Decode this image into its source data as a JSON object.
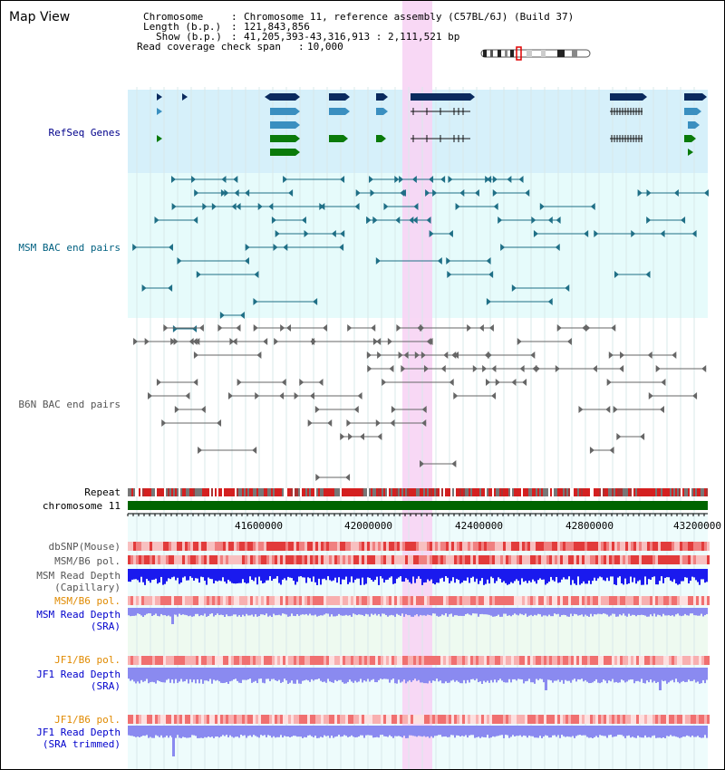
{
  "view": {
    "title": "Map View"
  },
  "info": {
    "chromosome_key": "Chromosome",
    "chromosome_val": "Chromosome 11, reference assembly (C57BL/6J) (Build 37)",
    "length_key": "Length (b.p.)",
    "length_val": "121,843,856",
    "show_key": "Show (b.p.)",
    "show_val": "41,205,393-43,316,913 : 2,111,521 bp",
    "coverage_key": "Read coverage check span",
    "coverage_val": "10,000"
  },
  "tracks": {
    "refseq": "RefSeq Genes",
    "msm_bac": "MSM BAC end pairs",
    "b6n_bac": "B6N BAC end pairs",
    "repeat": "Repeat",
    "chromosome": "chromosome 11",
    "dbsnp": "dbSNP(Mouse)",
    "msm_b6_pol_1": "MSM/B6 pol.",
    "msm_depth_cap_1": "MSM Read Depth",
    "msm_depth_cap_2": "(Capillary)",
    "msm_b6_pol_2": "MSM/B6 pol.",
    "msm_depth_sra_1": "MSM Read Depth",
    "msm_depth_sra_2": "(SRA)",
    "jf1_pol_1": "JF1/B6 pol.",
    "jf1_depth_1": "JF1 Read Depth",
    "jf1_depth_2": "(SRA)",
    "jf1_pol_2": "JF1/B6 pol.",
    "jf1_trim_1": "JF1 Read Depth",
    "jf1_trim_2": "(SRA trimmed)"
  },
  "axis": {
    "ticks": [
      "41600000",
      "42000000",
      "42400000",
      "42800000",
      "43200000"
    ]
  },
  "colors": {
    "refseq_bg": "#d6f0fa",
    "msm_bg": "#e6fbfb",
    "highlight": "#f7d4f4",
    "chromosome_bar": "#006400",
    "gene_navy": "#0a2a5e",
    "gene_blue": "#3a8fc0",
    "gene_green": "#0a7a0a",
    "bac_msm": "#1f6f86",
    "bac_b6n": "#666666",
    "depth_blue": "#1a1aee",
    "depth_lilac": "#8a8af0",
    "snp_red": "#e23b3b"
  }
}
